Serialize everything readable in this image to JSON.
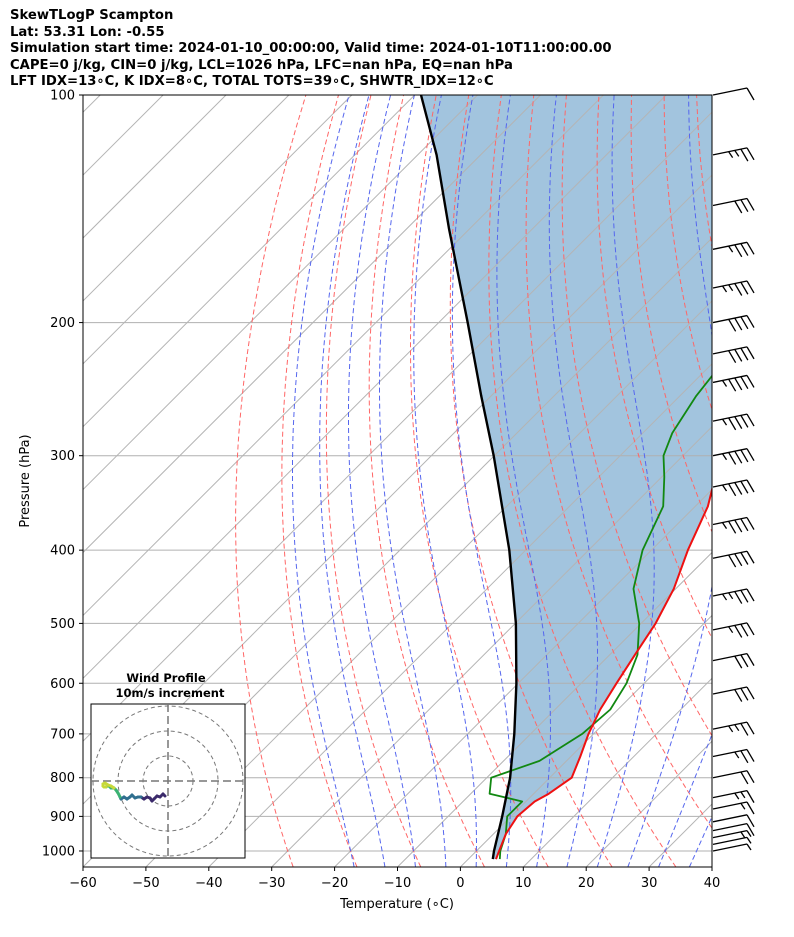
{
  "header": {
    "line1": "SkewTLogP Scampton",
    "line2": "Lat: 53.31   Lon: -0.55",
    "line3": "Simulation start time: 2024-01-10_00:00:00, Valid time: 2024-01-10T11:00:00.00",
    "line4": "CAPE=0 j/kg, CIN=0 j/kg, LCL=1026 hPa, LFC=nan hPa, EQ=nan hPa",
    "line5": "LFT IDX=13∘C, K IDX=8∘C, TOTAL TOTS=39∘C, SHWTR_IDX=12∘C"
  },
  "colors": {
    "temperature": "#ee1111",
    "dewpoint": "#118811",
    "parcel": "#000000",
    "cape_fill": "#a2c4de",
    "dry_adiabat": "#ff6666",
    "moist_adiabat": "#5566ee",
    "isotherm": "#b4b4b4"
  },
  "chart_data": {
    "type": "line",
    "title": "",
    "xlabel": "Temperature (∘C)",
    "ylabel": "Pressure (hPa)",
    "xlim": [
      -60,
      40
    ],
    "ylim": [
      1050,
      100
    ],
    "grid": true,
    "x_ticks": [
      "−60",
      "−50",
      "−40",
      "−30",
      "−20",
      "−10",
      "0",
      "10",
      "20",
      "30",
      "40"
    ],
    "x_tick_values": [
      -60,
      -50,
      -40,
      -30,
      -20,
      -10,
      0,
      10,
      20,
      30,
      40
    ],
    "y_ticks": [
      "100",
      "200",
      "300",
      "400",
      "500",
      "600",
      "700",
      "800",
      "900",
      "1000"
    ],
    "y_tick_values": [
      100,
      200,
      300,
      400,
      500,
      600,
      700,
      800,
      900,
      1000
    ],
    "series": [
      {
        "name": "Temperature",
        "color": "#ee1111",
        "points": [
          [
            1025,
            4.4
          ],
          [
            1000,
            3.6
          ],
          [
            950,
            2.0
          ],
          [
            900,
            1.0
          ],
          [
            860,
            1.4
          ],
          [
            840,
            2.4
          ],
          [
            800,
            3.5
          ],
          [
            750,
            1.5
          ],
          [
            700,
            -0.8
          ],
          [
            650,
            -2.8
          ],
          [
            600,
            -4.4
          ],
          [
            550,
            -6.0
          ],
          [
            500,
            -7.7
          ],
          [
            450,
            -10.3
          ],
          [
            400,
            -14.2
          ],
          [
            350,
            -18.0
          ],
          [
            330,
            -20.3
          ],
          [
            300,
            -22.1
          ],
          [
            280,
            -22.8
          ],
          [
            250,
            -21.7
          ],
          [
            220,
            -20.4
          ],
          [
            200,
            -17.9
          ],
          [
            180,
            -14.7
          ],
          [
            160,
            -12.3
          ],
          [
            140,
            -9.8
          ],
          [
            120,
            -6.4
          ],
          [
            110,
            -4.1
          ],
          [
            100,
            -2.1
          ]
        ]
      },
      {
        "name": "Dewpoint",
        "color": "#118811",
        "points": [
          [
            1025,
            5.0
          ],
          [
            1000,
            3.8
          ],
          [
            950,
            2.0
          ],
          [
            900,
            -0.6
          ],
          [
            860,
            -0.6
          ],
          [
            840,
            -7.0
          ],
          [
            800,
            -9.3
          ],
          [
            760,
            -4.3
          ],
          [
            700,
            -1.8
          ],
          [
            650,
            -1.2
          ],
          [
            600,
            -2.8
          ],
          [
            550,
            -5.6
          ],
          [
            500,
            -10.3
          ],
          [
            450,
            -16.7
          ],
          [
            400,
            -21.4
          ],
          [
            350,
            -25.1
          ],
          [
            320,
            -29.6
          ],
          [
            300,
            -33.1
          ],
          [
            280,
            -35.3
          ],
          [
            250,
            -37.4
          ],
          [
            220,
            -38.8
          ],
          [
            190,
            -39.3
          ],
          [
            160,
            -40.8
          ],
          [
            140,
            -36.8
          ],
          [
            120,
            -31.7
          ],
          [
            110,
            -28.5
          ],
          [
            100,
            -25.0
          ]
        ]
      },
      {
        "name": "Parcel",
        "color": "#000000",
        "points": [
          [
            1025,
            3.9
          ],
          [
            1000,
            2.8
          ],
          [
            900,
            -1.4
          ],
          [
            800,
            -6.3
          ],
          [
            700,
            -12.6
          ],
          [
            600,
            -20.3
          ],
          [
            500,
            -29.9
          ],
          [
            400,
            -42.6
          ],
          [
            300,
            -60.1
          ],
          [
            250,
            -71.6
          ],
          [
            200,
            -85.4
          ],
          [
            150,
            -103.4
          ],
          [
            120,
            -117.0
          ],
          [
            100,
            -129.0
          ]
        ]
      }
    ],
    "cape_region": "shaded between parcel and temperature profile"
  },
  "wind_barbs": {
    "pressures": [
      100,
      120,
      140,
      160,
      180,
      200,
      220,
      240,
      270,
      300,
      330,
      370,
      410,
      460,
      510,
      560,
      620,
      690,
      750,
      800,
      850,
      880,
      915,
      940,
      960,
      980,
      1000
    ],
    "speeds_kt": [
      12,
      28,
      32,
      34,
      38,
      41,
      42,
      43,
      44,
      45,
      46,
      45,
      42,
      38,
      36,
      32,
      30,
      28,
      25,
      22,
      18,
      15,
      12,
      10,
      8,
      7,
      6
    ]
  },
  "hodograph": {
    "title_line1": "Wind Profile",
    "title_line2": "10m/s increment"
  }
}
